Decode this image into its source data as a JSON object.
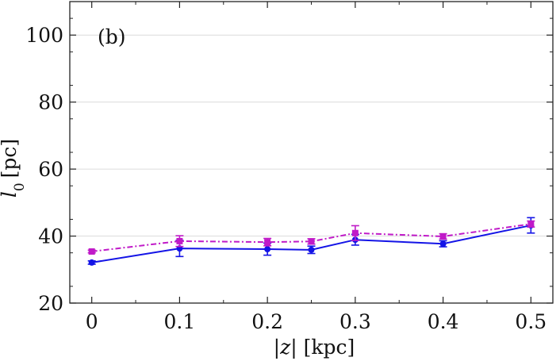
{
  "chart_data": {
    "type": "line",
    "annotation": "(b)",
    "xlabel": "|z| [kpc]",
    "ylabel": "l0 [pc]",
    "xlim": [
      -0.025,
      0.525
    ],
    "ylim": [
      20,
      110
    ],
    "xticks": [
      0,
      0.1,
      0.2,
      0.3,
      0.4,
      0.5
    ],
    "xtick_labels": [
      "0",
      "0.1",
      "0.2",
      "0.3",
      "0.4",
      "0.5"
    ],
    "yticks": [
      20,
      40,
      60,
      80,
      100
    ],
    "ytick_labels": [
      "20",
      "40",
      "60",
      "80",
      "100"
    ],
    "grid": "horizontal",
    "series": [
      {
        "color": "#1414e6",
        "line_style": "solid",
        "marker": "circle",
        "x": [
          0,
          0.1,
          0.2,
          0.25,
          0.3,
          0.4,
          0.5
        ],
        "y": [
          32.1,
          36.3,
          36.1,
          35.9,
          38.9,
          37.7,
          43.2
        ],
        "err": [
          0.5,
          2.4,
          1.8,
          1.1,
          1.6,
          0.9,
          2.3
        ]
      },
      {
        "color": "#c01ac8",
        "line_style": "dashdot",
        "marker": "square",
        "x": [
          0,
          0.1,
          0.2,
          0.25,
          0.3,
          0.4,
          0.5
        ],
        "y": [
          35.4,
          38.5,
          38.2,
          38.4,
          40.9,
          39.9,
          43.6
        ],
        "err": [
          0.4,
          1.6,
          1.1,
          0.8,
          2.2,
          0.8,
          0.9
        ]
      }
    ]
  }
}
